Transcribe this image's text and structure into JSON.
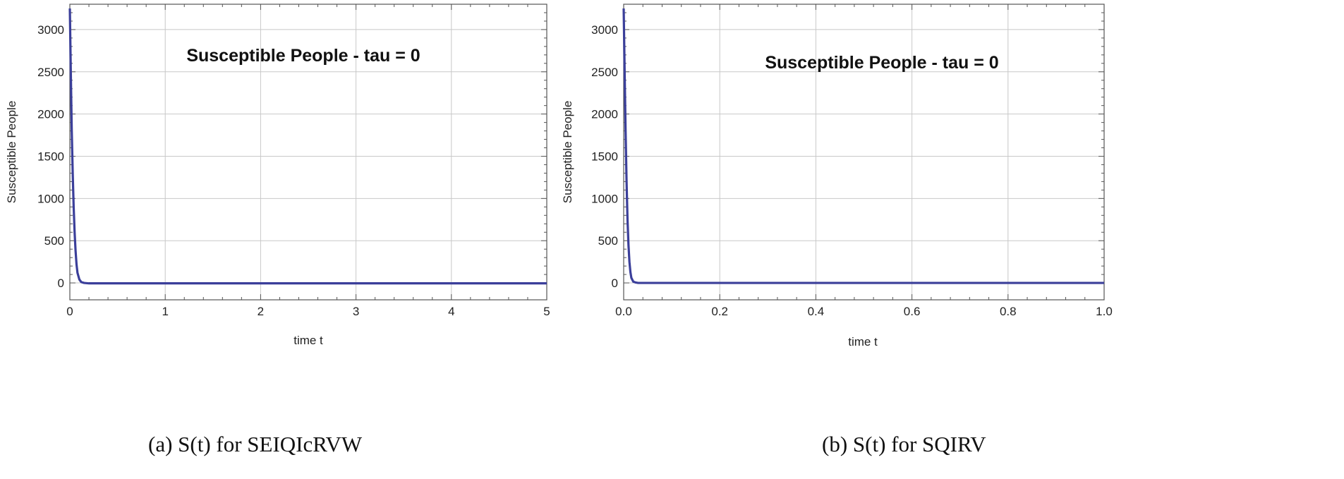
{
  "colors": {
    "line": "#3b3f9a",
    "grid": "#c8c8c8",
    "frame": "#555555"
  },
  "chart_data": [
    {
      "type": "line",
      "title": "Susceptible People - tau = 0",
      "xlabel": "time t",
      "ylabel": "Susceptible People",
      "xlim": [
        0,
        5
      ],
      "ylim": [
        -200,
        3300
      ],
      "xticks": [
        0,
        1,
        2,
        3,
        4,
        5
      ],
      "xtick_labels": [
        "0",
        "1",
        "2",
        "3",
        "4",
        "5"
      ],
      "yticks": [
        0,
        500,
        1000,
        1500,
        2000,
        2500,
        3000
      ],
      "ytick_labels": [
        "0",
        "500",
        "1000",
        "1500",
        "2000",
        "2500",
        "3000"
      ],
      "grid": true,
      "series": [
        {
          "x": [
            0,
            0.01,
            0.02,
            0.03,
            0.04,
            0.05,
            0.06,
            0.07,
            0.08,
            0.1,
            0.12,
            0.15,
            0.2,
            0.3,
            0.5,
            1,
            2,
            3,
            4,
            5
          ],
          "y": [
            3250,
            2500,
            1800,
            1300,
            900,
            600,
            380,
            220,
            120,
            40,
            10,
            0,
            -5,
            -5,
            -5,
            -5,
            -5,
            -5,
            -5,
            -5
          ]
        }
      ],
      "caption": "(a)  S(t) for SEIQIcRVW"
    },
    {
      "type": "line",
      "title": "Susceptible People - tau = 0",
      "xlabel": "time t",
      "ylabel": "Susceptible People",
      "xlim": [
        0,
        1
      ],
      "ylim": [
        -200,
        3300
      ],
      "xticks": [
        0,
        0.2,
        0.4,
        0.6,
        0.8,
        1.0
      ],
      "xtick_labels": [
        "0.0",
        "0.2",
        "0.4",
        "0.6",
        "0.8",
        "1.0"
      ],
      "yticks": [
        0,
        500,
        1000,
        1500,
        2000,
        2500,
        3000
      ],
      "ytick_labels": [
        "0",
        "500",
        "1000",
        "1500",
        "2000",
        "2500",
        "3000"
      ],
      "grid": true,
      "series": [
        {
          "x": [
            0,
            0.002,
            0.004,
            0.006,
            0.008,
            0.01,
            0.012,
            0.014,
            0.016,
            0.02,
            0.025,
            0.03,
            0.05,
            0.1,
            0.3,
            0.5,
            0.7,
            1.0
          ],
          "y": [
            3250,
            2500,
            1800,
            1200,
            750,
            450,
            250,
            130,
            60,
            15,
            5,
            0,
            0,
            0,
            0,
            0,
            0,
            0
          ]
        }
      ],
      "caption": "(b)  S(t) for SQIRV"
    }
  ]
}
